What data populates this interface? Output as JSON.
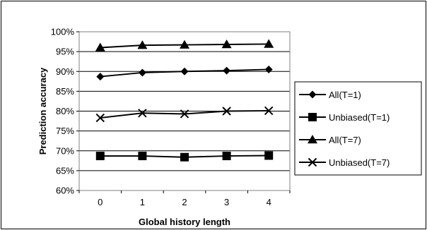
{
  "chart_data": {
    "type": "line",
    "x": [
      0,
      1,
      2,
      3,
      4
    ],
    "xlabel": "Global history length",
    "ylabel": "Prediction accuracy",
    "ylim": [
      60,
      100
    ],
    "yticks": [
      "60%",
      "65%",
      "70%",
      "75%",
      "80%",
      "85%",
      "90%",
      "95%",
      "100%"
    ],
    "grid": "horizontal",
    "legend_position": "right",
    "series": [
      {
        "name": "All(T=1)",
        "marker": "diamond",
        "values": [
          88.7,
          89.7,
          90.0,
          90.2,
          90.5
        ]
      },
      {
        "name": "Unbiased(T=1)",
        "marker": "square",
        "values": [
          68.7,
          68.7,
          68.4,
          68.7,
          68.8
        ]
      },
      {
        "name": "All(T=7)",
        "marker": "triangle",
        "values": [
          96.0,
          96.6,
          96.7,
          96.8,
          96.9
        ]
      },
      {
        "name": "Unbiased(T=7)",
        "marker": "x",
        "values": [
          78.3,
          79.5,
          79.3,
          80.0,
          80.1
        ]
      }
    ]
  }
}
